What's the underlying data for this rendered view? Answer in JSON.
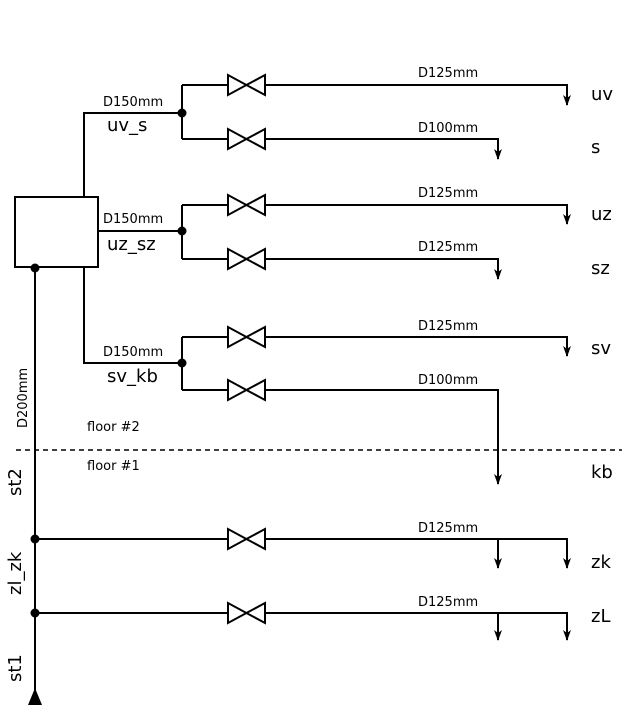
{
  "diagram": {
    "riser_diameter": "D200mm",
    "floor_upper": "floor #2",
    "floor_lower": "floor #1",
    "riser_segments": [
      "st2",
      "zl_zk",
      "st1"
    ],
    "branches": [
      {
        "name": "uv_s",
        "diameter": "D150mm",
        "outlets": [
          {
            "label": "uv",
            "diameter": "D125mm"
          },
          {
            "label": "s",
            "diameter": "D100mm"
          }
        ]
      },
      {
        "name": "uz_sz",
        "diameter": "D150mm",
        "outlets": [
          {
            "label": "uz",
            "diameter": "D125mm"
          },
          {
            "label": "sz",
            "diameter": "D125mm"
          }
        ]
      },
      {
        "name": "sv_kb",
        "diameter": "D150mm",
        "outlets": [
          {
            "label": "sv",
            "diameter": "D125mm"
          },
          {
            "label": "kb",
            "diameter": "D100mm"
          }
        ]
      }
    ],
    "floor1_lines": [
      {
        "label": "zk",
        "diameter": "D125mm"
      },
      {
        "label": "zL",
        "diameter": "D125mm"
      }
    ],
    "line_color": "#000000"
  }
}
